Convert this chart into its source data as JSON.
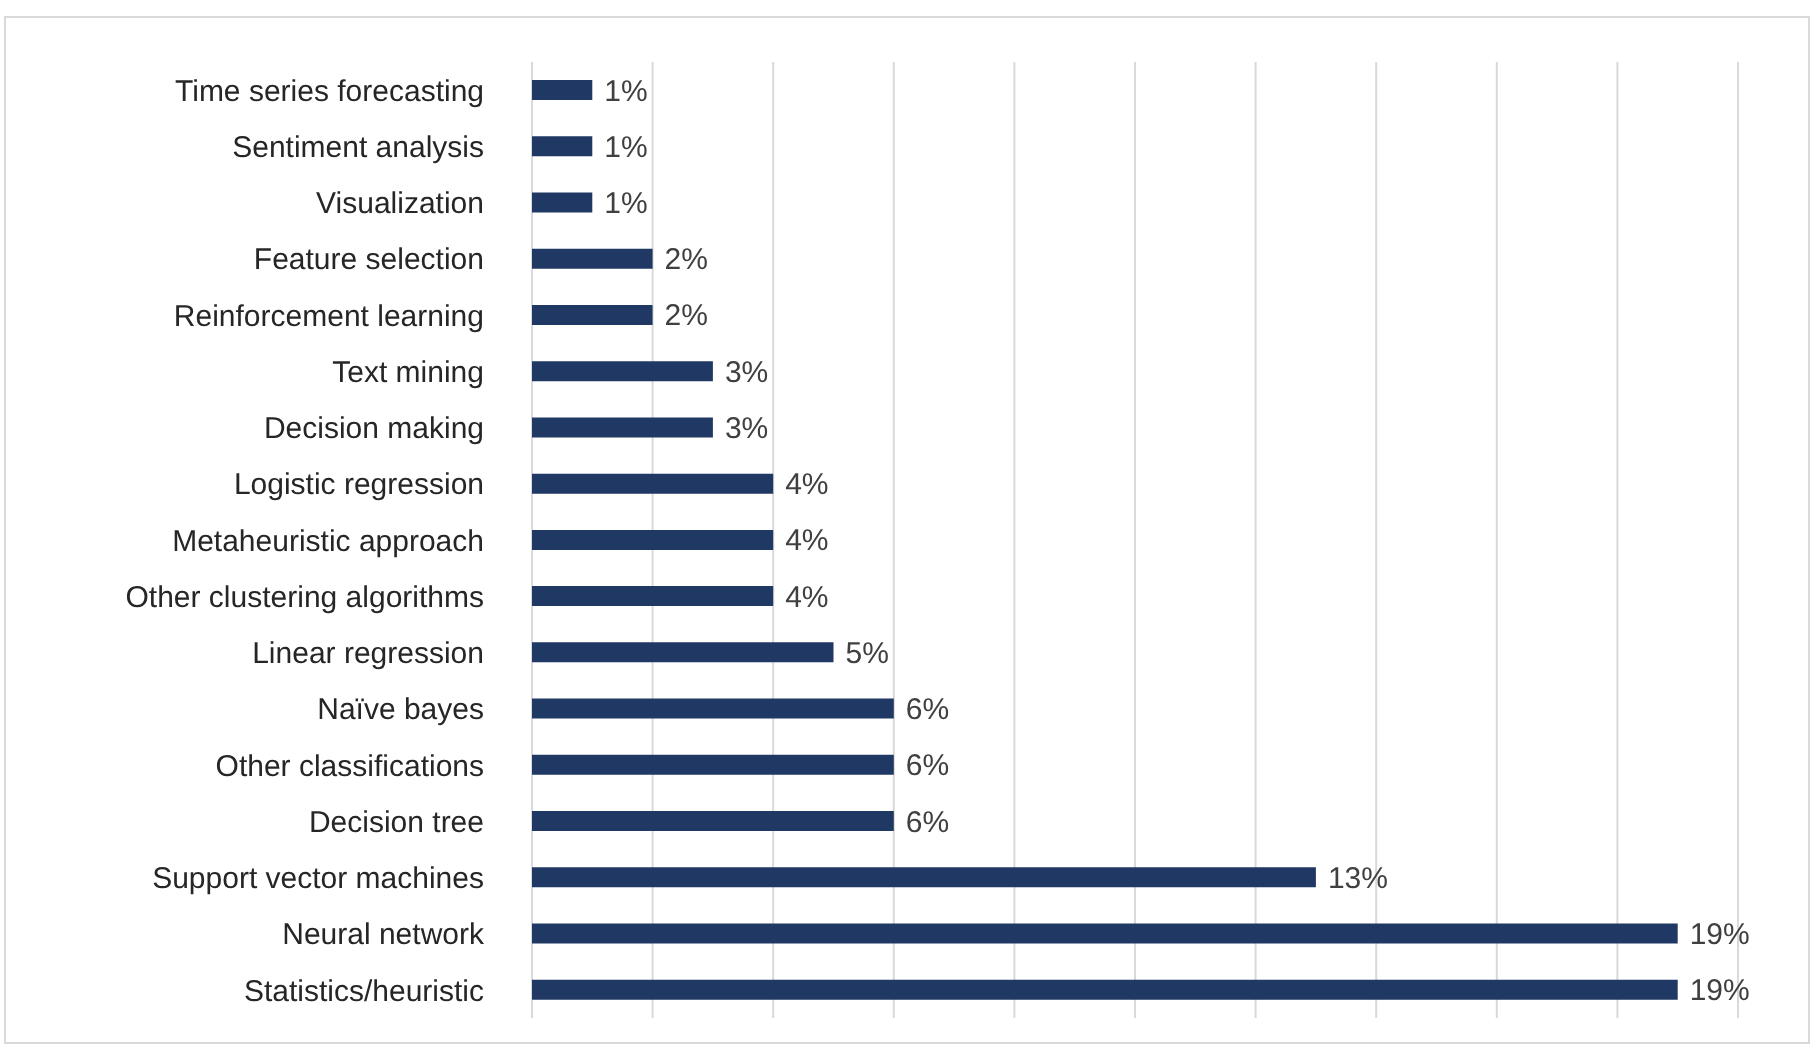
{
  "chart_data": {
    "type": "bar",
    "orientation": "horizontal",
    "categories": [
      "Time series forecasting",
      "Sentiment analysis",
      "Visualization",
      "Feature selection",
      "Reinforcement learning",
      "Text mining",
      "Decision making",
      "Logistic regression",
      "Metaheuristic approach",
      "Other clustering algorithms",
      "Linear regression",
      "Naïve bayes",
      "Other classifications",
      "Decision tree",
      "Support vector machines",
      "Neural network",
      "Statistics/heuristic"
    ],
    "values": [
      1,
      1,
      1,
      2,
      2,
      3,
      3,
      4,
      4,
      4,
      5,
      6,
      6,
      6,
      13,
      19,
      19
    ],
    "color": "#203864",
    "data_labels": true,
    "value_labels": [
      "1%",
      "1%",
      "1%",
      "2%",
      "2%",
      "3%",
      "3%",
      "4%",
      "4%",
      "4%",
      "5%",
      "6%",
      "6%",
      "6%",
      "13%",
      "19%",
      "19%"
    ],
    "grid": "x",
    "tick_labels": "y"
  }
}
